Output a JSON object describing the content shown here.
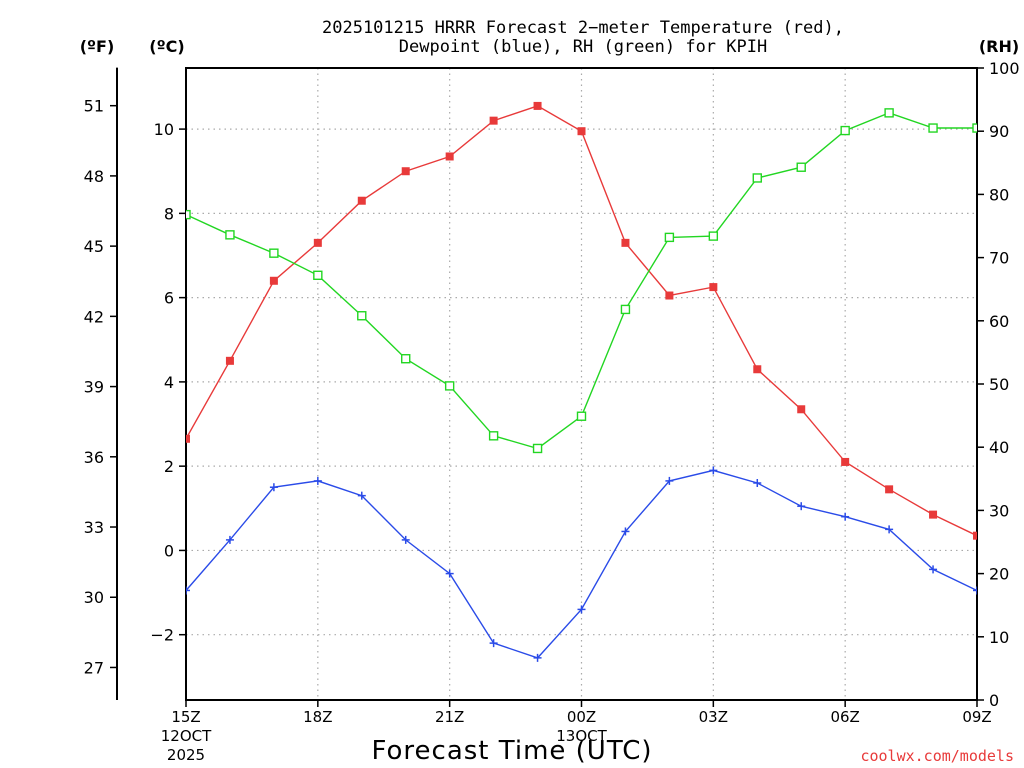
{
  "chart_data": {
    "type": "line",
    "title_line1": "2025101215 HRRR Forecast 2−meter Temperature (red),",
    "title_line2": "Dewpoint (blue), RH (green) for KPIH",
    "unit_f": "(ºF)",
    "unit_c": "(ºC)",
    "unit_rh": "(RH)",
    "xlabel": "Forecast Time (UTC)",
    "credit": "coolwx.com/models",
    "x_hours": [
      0,
      1,
      2,
      3,
      4,
      5,
      6,
      7,
      8,
      9,
      10,
      11,
      12,
      13,
      14,
      15,
      16,
      17,
      18
    ],
    "x_ticks": [
      {
        "h": 0,
        "label": "15Z",
        "sub1": "12OCT",
        "sub2": "2025"
      },
      {
        "h": 3,
        "label": "18Z",
        "sub1": "",
        "sub2": ""
      },
      {
        "h": 6,
        "label": "21Z",
        "sub1": "",
        "sub2": ""
      },
      {
        "h": 9,
        "label": "00Z",
        "sub1": "13OCT",
        "sub2": ""
      },
      {
        "h": 12,
        "label": "03Z",
        "sub1": "",
        "sub2": ""
      },
      {
        "h": 15,
        "label": "06Z",
        "sub1": "",
        "sub2": ""
      },
      {
        "h": 18,
        "label": "09Z",
        "sub1": "",
        "sub2": ""
      }
    ],
    "c_range": [
      -3.55,
      11.45
    ],
    "c_ticks": [
      -2,
      0,
      2,
      4,
      6,
      8,
      10
    ],
    "c_tick_labels": [
      "−2",
      "0",
      "2",
      "4",
      "6",
      "8",
      "10"
    ],
    "f_ticks": [
      27,
      30,
      33,
      36,
      39,
      42,
      45,
      48,
      51
    ],
    "f_tick_labels": [
      "27",
      "30",
      "33",
      "36",
      "39",
      "42",
      "45",
      "48",
      "51"
    ],
    "rh_range": [
      0,
      100
    ],
    "rh_ticks": [
      0,
      10,
      20,
      30,
      40,
      50,
      60,
      70,
      80,
      90,
      100
    ],
    "rh_tick_labels": [
      "0",
      "10",
      "20",
      "30",
      "40",
      "50",
      "60",
      "70",
      "80",
      "90",
      "100"
    ],
    "series": [
      {
        "name": "Temperature",
        "axis": "c",
        "color": "#e83a3a",
        "marker": "filled-square",
        "values": [
          2.65,
          4.5,
          6.4,
          7.3,
          8.3,
          9.0,
          9.35,
          10.2,
          10.55,
          9.95,
          7.3,
          6.05,
          6.25,
          4.3,
          3.35,
          2.1,
          1.45,
          0.85,
          0.35
        ]
      },
      {
        "name": "Dewpoint",
        "axis": "c",
        "color": "#2a4be8",
        "marker": "plus",
        "values": [
          -0.95,
          0.25,
          1.5,
          1.65,
          1.3,
          0.25,
          -0.55,
          -2.2,
          -2.55,
          -1.4,
          0.45,
          1.65,
          1.9,
          1.6,
          1.05,
          0.8,
          0.5,
          -0.45,
          -0.95
        ]
      },
      {
        "name": "RH",
        "axis": "rh",
        "color": "#22d622",
        "marker": "open-square",
        "values": [
          76.8,
          73.6,
          70.7,
          67.2,
          60.8,
          54.0,
          49.7,
          41.8,
          39.8,
          44.9,
          61.8,
          73.2,
          73.4,
          82.6,
          84.3,
          90.1,
          92.9,
          90.5,
          90.5
        ]
      }
    ]
  }
}
